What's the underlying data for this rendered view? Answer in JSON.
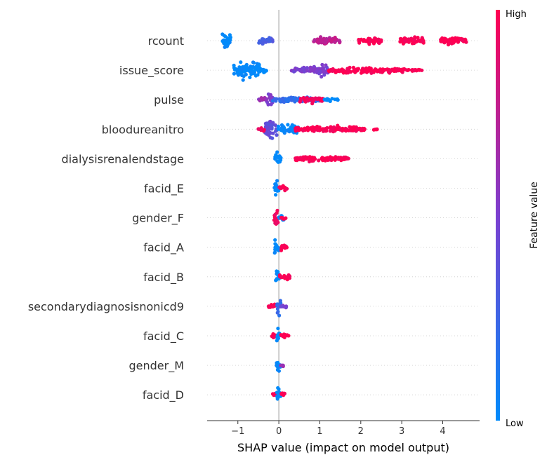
{
  "chart_data": {
    "type": "scatter",
    "subtype": "shap-beeswarm",
    "xlabel": "SHAP value (impact on model output)",
    "xlim": [
      -1.75,
      4.9
    ],
    "xticks": [
      "−1",
      "0",
      "1",
      "2",
      "3",
      "4"
    ],
    "xtick_values": [
      -1,
      0,
      1,
      2,
      3,
      4
    ],
    "colorbar": {
      "label": "Feature value",
      "high_label": "High",
      "low_label": "Low",
      "low_color": "#008bfb",
      "mid_color": "#7b3fd0",
      "high_color": "#ff0052"
    },
    "features": [
      {
        "name": "rcount",
        "clusters": [
          {
            "x": [
              -1.4,
              -1.15
            ],
            "c": 0.0,
            "w": 1.0
          },
          {
            "x": [
              -0.5,
              -0.15
            ],
            "c": 0.3,
            "w": 0.4
          },
          {
            "x": [
              0.85,
              1.5
            ],
            "c": 0.75,
            "w": 0.45
          },
          {
            "x": [
              1.95,
              2.5
            ],
            "c": 1.0,
            "w": 0.45
          },
          {
            "x": [
              2.95,
              3.55
            ],
            "c": 1.0,
            "w": 0.45
          },
          {
            "x": [
              3.95,
              4.6
            ],
            "c": 1.0,
            "w": 0.4
          }
        ]
      },
      {
        "name": "issue_score",
        "clusters": [
          {
            "x": [
              -1.1,
              -0.45
            ],
            "c": 0.0,
            "w": 1.0
          },
          {
            "x": [
              -0.45,
              -0.3
            ],
            "c": 0.0,
            "w": 0.3
          },
          {
            "x": [
              0.3,
              1.2
            ],
            "c": 0.5,
            "w": 0.35
          },
          {
            "x": [
              0.9,
              1.2
            ],
            "c": 0.5,
            "w": 0.6
          },
          {
            "x": [
              1.2,
              3.1
            ],
            "c": 1.0,
            "w": 0.35
          },
          {
            "x": [
              3.1,
              3.5
            ],
            "c": 1.0,
            "w": 0.1
          }
        ]
      },
      {
        "name": "pulse",
        "clusters": [
          {
            "x": [
              -0.3,
              -0.15
            ],
            "c": 0.5,
            "w": 0.9
          },
          {
            "x": [
              -0.5,
              -0.3
            ],
            "c": 0.6,
            "w": 0.25
          },
          {
            "x": [
              -0.15,
              1.0
            ],
            "c": 0.2,
            "w": 0.3
          },
          {
            "x": [
              0.5,
              1.1
            ],
            "c": 0.95,
            "w": 0.35
          },
          {
            "x": [
              1.1,
              1.45
            ],
            "c": 0.0,
            "w": 0.15
          }
        ]
      },
      {
        "name": "bloodureanitro",
        "clusters": [
          {
            "x": [
              -0.35,
              -0.05
            ],
            "c": 0.4,
            "w": 1.0
          },
          {
            "x": [
              -0.5,
              -0.3
            ],
            "c": 0.95,
            "w": 0.2
          },
          {
            "x": [
              -0.05,
              0.5
            ],
            "c": 0.0,
            "w": 0.5
          },
          {
            "x": [
              0.4,
              2.1
            ],
            "c": 1.0,
            "w": 0.35
          },
          {
            "x": [
              2.3,
              2.4
            ],
            "c": 1.0,
            "w": 0.1
          }
        ]
      },
      {
        "name": "dialysisrenalendstage",
        "clusters": [
          {
            "x": [
              -0.1,
              0.05
            ],
            "c": 0.0,
            "w": 0.9
          },
          {
            "x": [
              0.4,
              1.7
            ],
            "c": 1.0,
            "w": 0.35
          }
        ]
      },
      {
        "name": "facid_E",
        "clusters": [
          {
            "x": [
              -0.12,
              0.0
            ],
            "c": 0.0,
            "w": 0.9
          },
          {
            "x": [
              0.0,
              0.2
            ],
            "c": 1.0,
            "w": 0.3
          }
        ]
      },
      {
        "name": "gender_F",
        "clusters": [
          {
            "x": [
              -0.12,
              0.0
            ],
            "c": 0.95,
            "w": 0.9
          },
          {
            "x": [
              0.0,
              0.2
            ],
            "c": 0.1,
            "w": 0.3
          },
          {
            "x": [
              0.05,
              0.18
            ],
            "c": 1.0,
            "w": 0.2
          }
        ]
      },
      {
        "name": "facid_A",
        "clusters": [
          {
            "x": [
              -0.12,
              0.0
            ],
            "c": 0.0,
            "w": 0.9
          },
          {
            "x": [
              0.0,
              0.2
            ],
            "c": 1.0,
            "w": 0.3
          }
        ]
      },
      {
        "name": "facid_B",
        "clusters": [
          {
            "x": [
              -0.08,
              0.02
            ],
            "c": 0.0,
            "w": 0.9
          },
          {
            "x": [
              0.02,
              0.28
            ],
            "c": 1.0,
            "w": 0.3
          }
        ]
      },
      {
        "name": "secondarydiagnosisnonicd9",
        "clusters": [
          {
            "x": [
              -0.25,
              -0.05
            ],
            "c": 1.0,
            "w": 0.3
          },
          {
            "x": [
              -0.05,
              0.05
            ],
            "c": 0.2,
            "w": 0.9
          },
          {
            "x": [
              0.05,
              0.18
            ],
            "c": 0.5,
            "w": 0.3
          }
        ]
      },
      {
        "name": "facid_C",
        "clusters": [
          {
            "x": [
              -0.18,
              -0.05
            ],
            "c": 1.0,
            "w": 0.25
          },
          {
            "x": [
              -0.05,
              0.05
            ],
            "c": 0.0,
            "w": 0.9
          },
          {
            "x": [
              0.05,
              0.25
            ],
            "c": 1.0,
            "w": 0.3
          }
        ]
      },
      {
        "name": "gender_M",
        "clusters": [
          {
            "x": [
              -0.06,
              0.04
            ],
            "c": 0.0,
            "w": 0.9
          },
          {
            "x": [
              0.04,
              0.12
            ],
            "c": 0.6,
            "w": 0.25
          }
        ]
      },
      {
        "name": "facid_D",
        "clusters": [
          {
            "x": [
              -0.18,
              -0.05
            ],
            "c": 1.0,
            "w": 0.25
          },
          {
            "x": [
              -0.05,
              0.05
            ],
            "c": 0.0,
            "w": 0.9
          },
          {
            "x": [
              0.05,
              0.18
            ],
            "c": 1.0,
            "w": 0.25
          }
        ]
      }
    ]
  }
}
